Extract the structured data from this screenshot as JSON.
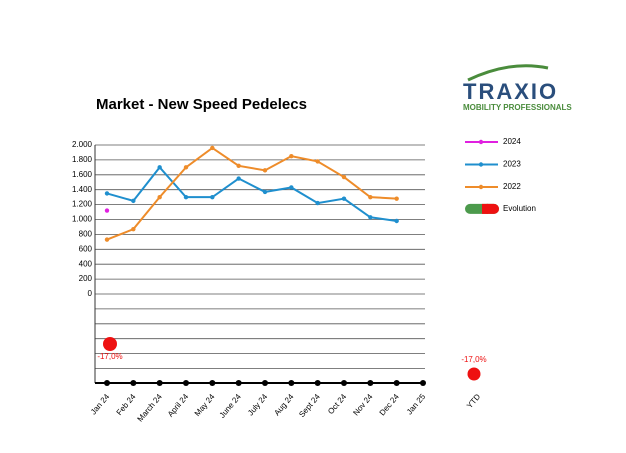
{
  "logo": {
    "name": "TRAXIO",
    "tagline": "MOBILITY PROFESSIONALS"
  },
  "chart_data": {
    "type": "line",
    "title": "Market - New Speed Pedelecs",
    "categories": [
      "Jan 24",
      "Feb 24",
      "March 24",
      "April 24",
      "May 24",
      "June 24",
      "July 24",
      "Aug 24",
      "Sept 24",
      "Oct 24",
      "Nov 24",
      "Dec 24",
      "Jan 25"
    ],
    "series": [
      {
        "name": "2024",
        "color": "#e020e0",
        "values": [
          1120,
          null,
          null,
          null,
          null,
          null,
          null,
          null,
          null,
          null,
          null,
          null,
          null
        ]
      },
      {
        "name": "2023",
        "color": "#1f8fce",
        "values": [
          1350,
          1250,
          1700,
          1300,
          1300,
          1550,
          1370,
          1430,
          1220,
          1280,
          1030,
          980,
          null
        ]
      },
      {
        "name": "2022",
        "color": "#ee8c2a",
        "values": [
          730,
          870,
          1300,
          1700,
          1960,
          1720,
          1660,
          1850,
          1780,
          1570,
          1300,
          1280,
          null
        ]
      }
    ],
    "evolution": {
      "name": "Evolution",
      "color": "#ee1111",
      "values": [
        -17.0,
        null,
        null,
        null,
        null,
        null,
        null,
        null,
        null,
        null,
        null,
        null,
        null
      ],
      "value_labels": [
        "-17,0%",
        null,
        null,
        null,
        null,
        null,
        null,
        null,
        null,
        null,
        null,
        null,
        null
      ],
      "ytd_label": "YTD",
      "ytd_value": -17.0,
      "ytd_value_label": "-17,0%"
    },
    "ylim": [
      0,
      2000
    ],
    "yticks": [
      {
        "value": 2000,
        "label": "2.000"
      },
      {
        "value": 1800,
        "label": "1.800"
      },
      {
        "value": 1600,
        "label": "1.600"
      },
      {
        "value": 1400,
        "label": "1.400"
      },
      {
        "value": 1200,
        "label": "1.200"
      },
      {
        "value": 1000,
        "label": "1.000"
      },
      800,
      600,
      400,
      200,
      0
    ],
    "grid": true,
    "legend": "right"
  }
}
